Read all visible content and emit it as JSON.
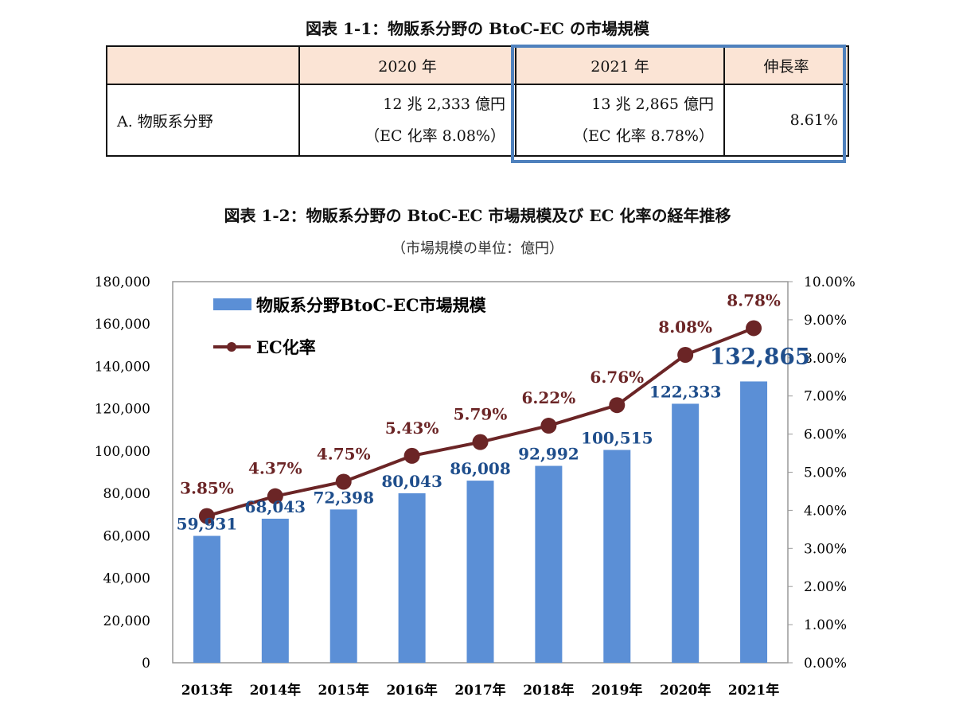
{
  "table1": {
    "title": "図表 1-1：物販系分野の BtoC-EC の市場規模",
    "headers": [
      "",
      "2020 年",
      "2021 年",
      "伸長率"
    ],
    "row": {
      "label": "A. 物販系分野",
      "y2020_amount": "12 兆 2,333 億円",
      "y2020_rate": "（EC 化率  8.08%）",
      "y2021_amount": "13 兆 2,865 億円",
      "y2021_rate": "（EC 化率  8.78%）",
      "growth": "8.61%"
    },
    "highlight_color": "#4f81bd",
    "header_bg": "#fbe4d5"
  },
  "chart_data": {
    "type": "bar+line",
    "title": "図表 1-2：物販系分野の BtoC-EC 市場規模及び EC 化率の経年推移",
    "subtitle": "（市場規模の単位：億円）",
    "categories": [
      "2013年",
      "2014年",
      "2015年",
      "2016年",
      "2017年",
      "2018年",
      "2019年",
      "2020年",
      "2021年"
    ],
    "series": [
      {
        "name": "物販系分野BtoC-EC市場規模",
        "type": "bar",
        "axis": "left",
        "color": "#5b8fd6",
        "label_color": "#1f4e8c",
        "values": [
          59931,
          68043,
          72398,
          80043,
          86008,
          92992,
          100515,
          122333,
          132865
        ],
        "labels": [
          "59,931",
          "68,043",
          "72,398",
          "80,043",
          "86,008",
          "92,992",
          "100,515",
          "122,333",
          "132,865"
        ]
      },
      {
        "name": "EC化率",
        "type": "line",
        "axis": "right",
        "color": "#6b2526",
        "values": [
          3.85,
          4.37,
          4.75,
          5.43,
          5.79,
          6.22,
          6.76,
          8.08,
          8.78
        ],
        "labels": [
          "3.85%",
          "4.37%",
          "4.75%",
          "5.43%",
          "5.79%",
          "6.22%",
          "6.76%",
          "8.08%",
          "8.78%"
        ]
      }
    ],
    "y_left": {
      "range": [
        0,
        180000
      ],
      "ticks": [
        "0",
        "20,000",
        "40,000",
        "60,000",
        "80,000",
        "100,000",
        "120,000",
        "140,000",
        "160,000",
        "180,000"
      ]
    },
    "y_right": {
      "range": [
        0,
        10
      ],
      "ticks": [
        "0.00%",
        "1.00%",
        "2.00%",
        "3.00%",
        "4.00%",
        "5.00%",
        "6.00%",
        "7.00%",
        "8.00%",
        "9.00%",
        "10.00%"
      ]
    },
    "grid": false,
    "legend": "top-left"
  }
}
